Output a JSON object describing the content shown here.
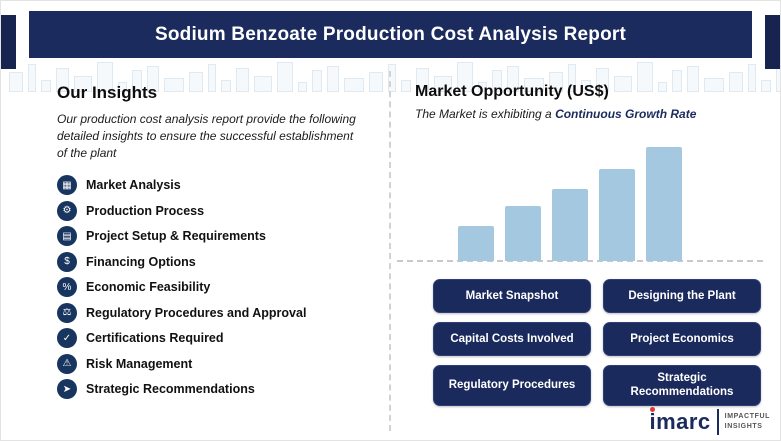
{
  "header": {
    "title": "Sodium Benzoate Production Cost Analysis Report"
  },
  "insights": {
    "heading": "Our Insights",
    "description": "Our production cost analysis report provide the following detailed insights to ensure the successful establishment of the plant",
    "items": [
      {
        "label": "Market Analysis",
        "icon": "market-analysis-icon",
        "glyph": "▦"
      },
      {
        "label": "Production Process",
        "icon": "production-process-icon",
        "glyph": "⚙"
      },
      {
        "label": "Project Setup & Requirements",
        "icon": "project-setup-icon",
        "glyph": "▤"
      },
      {
        "label": "Financing Options",
        "icon": "financing-options-icon",
        "glyph": "$"
      },
      {
        "label": "Economic Feasibility",
        "icon": "economic-feasibility-icon",
        "glyph": "%"
      },
      {
        "label": "Regulatory Procedures and Approval",
        "icon": "regulatory-procedures-icon",
        "glyph": "⚖"
      },
      {
        "label": "Certifications Required",
        "icon": "certifications-icon",
        "glyph": "✓"
      },
      {
        "label": "Risk Management",
        "icon": "risk-management-icon",
        "glyph": "⚠"
      },
      {
        "label": "Strategic Recommendations",
        "icon": "strategic-recommendations-icon",
        "glyph": "➤"
      }
    ]
  },
  "market": {
    "heading": "Market Opportunity (US$)",
    "subtitle_prefix": "The Market is exhibiting a ",
    "subtitle_highlight": "Continuous Growth Rate"
  },
  "chart_data": {
    "type": "bar",
    "title": "Market Opportunity (US$)",
    "categories": [
      "",
      "",
      "",
      "",
      ""
    ],
    "values": [
      31,
      48,
      63,
      81,
      100
    ],
    "xlabel": "",
    "ylabel": "",
    "axis_ticks_visible": false,
    "legend": "none",
    "bar_color": "#a5c8e1",
    "baseline_style": "dashed"
  },
  "report_buttons": [
    "Market Snapshot",
    "Designing the Plant",
    "Capital Costs Involved",
    "Project Economics",
    "Regulatory Procedures",
    "Strategic Recommendations"
  ],
  "logo": {
    "brand": "imarc",
    "tagline_line1": "IMPACTFUL",
    "tagline_line2": "INSIGHTS"
  },
  "colors": {
    "navy": "#1b2b5e",
    "bar_blue": "#a5c8e1",
    "accent_red": "#e53935",
    "divider_gray": "#d2d2d2"
  }
}
